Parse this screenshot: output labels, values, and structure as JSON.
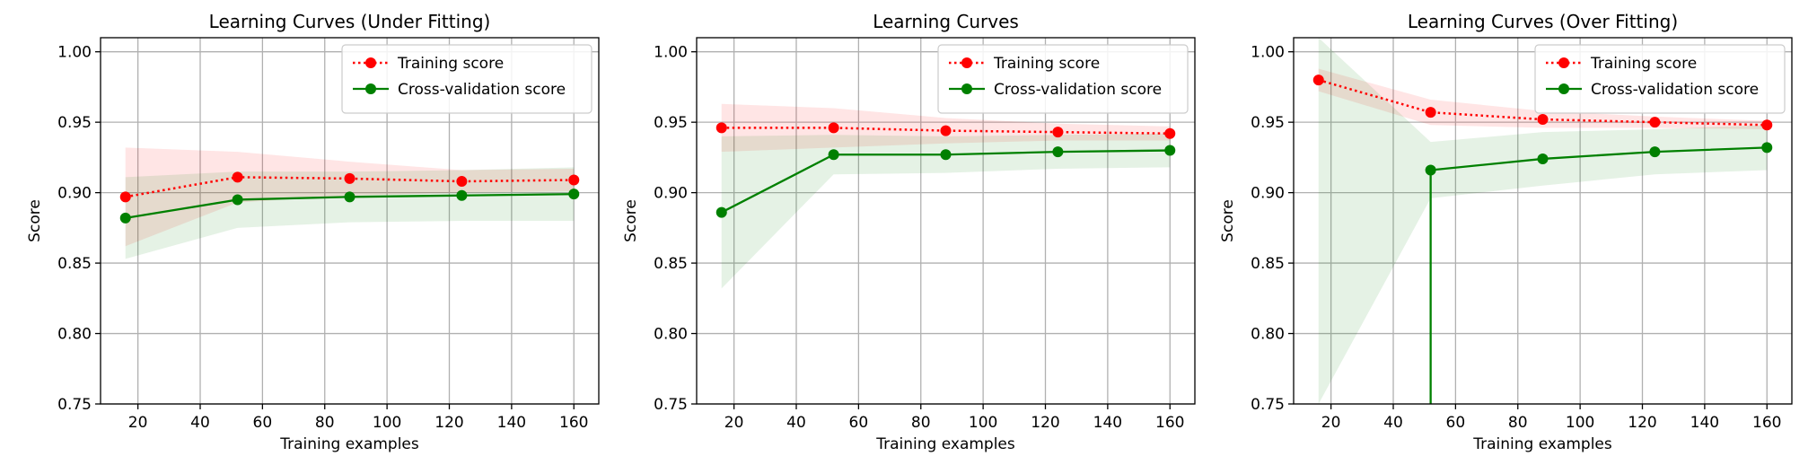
{
  "chart_data": [
    {
      "type": "line",
      "title": "Learning Curves (Under Fitting)",
      "xlabel": "Training examples",
      "ylabel": "Score",
      "xlim": [
        8,
        168
      ],
      "ylim": [
        0.75,
        1.01
      ],
      "xticks": [
        20,
        40,
        60,
        80,
        100,
        120,
        140,
        160
      ],
      "yticks": [
        0.75,
        0.8,
        0.85,
        0.9,
        0.95,
        1.0
      ],
      "ytick_labels": [
        "0.75",
        "0.80",
        "0.85",
        "0.90",
        "0.95",
        "1.00"
      ],
      "grid": true,
      "legend": "top-right",
      "x": [
        16,
        52,
        88,
        124,
        160
      ],
      "series": [
        {
          "name": "Training score",
          "color": "#ff0000",
          "style": "dotted",
          "values": [
            0.897,
            0.911,
            0.91,
            0.908,
            0.909
          ],
          "band_lower": [
            0.862,
            0.893,
            0.898,
            0.9,
            0.901
          ],
          "band_upper": [
            0.932,
            0.929,
            0.922,
            0.916,
            0.917
          ]
        },
        {
          "name": "Cross-validation score",
          "color": "#008000",
          "style": "solid",
          "values": [
            0.882,
            0.895,
            0.897,
            0.898,
            0.899
          ],
          "band_lower": [
            0.853,
            0.875,
            0.879,
            0.88,
            0.88
          ],
          "band_upper": [
            0.911,
            0.915,
            0.915,
            0.916,
            0.918
          ]
        }
      ]
    },
    {
      "type": "line",
      "title": "Learning Curves",
      "xlabel": "Training examples",
      "ylabel": "Score",
      "xlim": [
        8,
        168
      ],
      "ylim": [
        0.75,
        1.01
      ],
      "xticks": [
        20,
        40,
        60,
        80,
        100,
        120,
        140,
        160
      ],
      "yticks": [
        0.75,
        0.8,
        0.85,
        0.9,
        0.95,
        1.0
      ],
      "ytick_labels": [
        "0.75",
        "0.80",
        "0.85",
        "0.90",
        "0.95",
        "1.00"
      ],
      "grid": true,
      "legend": "top-right",
      "x": [
        16,
        52,
        88,
        124,
        160
      ],
      "series": [
        {
          "name": "Training score",
          "color": "#ff0000",
          "style": "dotted",
          "values": [
            0.946,
            0.946,
            0.944,
            0.943,
            0.942
          ],
          "band_lower": [
            0.929,
            0.932,
            0.935,
            0.937,
            0.937
          ],
          "band_upper": [
            0.963,
            0.96,
            0.953,
            0.949,
            0.947
          ]
        },
        {
          "name": "Cross-validation score",
          "color": "#008000",
          "style": "solid",
          "values": [
            0.886,
            0.927,
            0.927,
            0.929,
            0.93
          ],
          "band_lower": [
            0.832,
            0.913,
            0.914,
            0.917,
            0.918
          ],
          "band_upper": [
            0.94,
            0.941,
            0.94,
            0.941,
            0.942
          ]
        }
      ]
    },
    {
      "type": "line",
      "title": "Learning Curves (Over Fitting)",
      "xlabel": "Training examples",
      "ylabel": "Score",
      "xlim": [
        8,
        168
      ],
      "ylim": [
        0.75,
        1.01
      ],
      "xticks": [
        20,
        40,
        60,
        80,
        100,
        120,
        140,
        160
      ],
      "yticks": [
        0.75,
        0.8,
        0.85,
        0.9,
        0.95,
        1.0
      ],
      "ytick_labels": [
        "0.75",
        "0.80",
        "0.85",
        "0.90",
        "0.95",
        "1.00"
      ],
      "grid": true,
      "legend": "top-right",
      "x": [
        16,
        52,
        88,
        124,
        160
      ],
      "series": [
        {
          "name": "Training score",
          "color": "#ff0000",
          "style": "dotted",
          "values": [
            0.98,
            0.957,
            0.952,
            0.95,
            0.948
          ],
          "band_lower": [
            0.972,
            0.948,
            0.946,
            0.946,
            0.945
          ],
          "band_upper": [
            0.988,
            0.966,
            0.958,
            0.954,
            0.951
          ]
        },
        {
          "name": "Cross-validation score",
          "color": "#008000",
          "style": "solid",
          "values": [
            null,
            0.916,
            0.924,
            0.929,
            0.932
          ],
          "band_lower": [
            0.75,
            0.896,
            0.905,
            0.913,
            0.916
          ],
          "band_upper": [
            1.01,
            0.936,
            0.943,
            0.945,
            0.948
          ],
          "drop_to_axis_at": 52
        }
      ]
    }
  ]
}
